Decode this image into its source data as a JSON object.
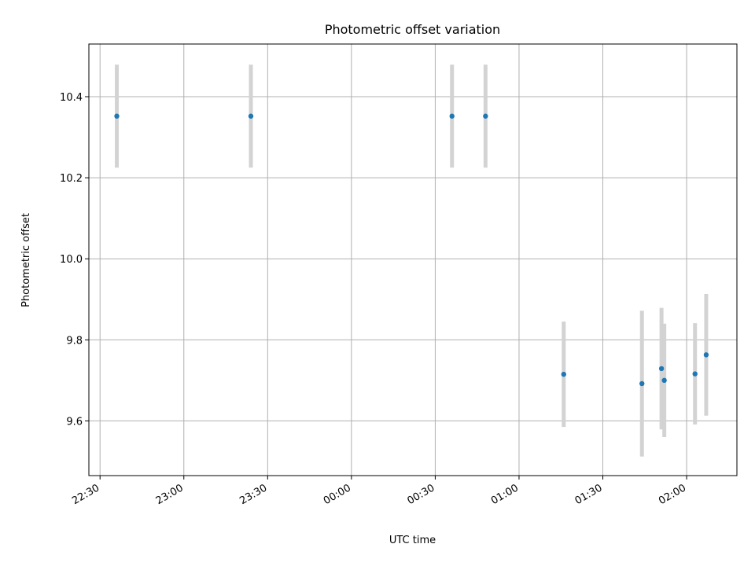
{
  "chart_data": {
    "type": "scatter",
    "title": "Photometric offset variation",
    "xlabel": "UTC time",
    "ylabel": "Photometric offset",
    "x_type": "time",
    "xlim": [
      "22:26",
      "02:18"
    ],
    "ylim": [
      9.465,
      10.53
    ],
    "grid": true,
    "x_ticks": [
      "22:30",
      "23:00",
      "23:30",
      "00:00",
      "00:30",
      "01:00",
      "01:30",
      "02:00"
    ],
    "y_ticks": [
      9.6,
      9.8,
      10.0,
      10.2,
      10.4
    ],
    "y_tick_labels": [
      "9.6",
      "9.8",
      "10.0",
      "10.2",
      "10.4"
    ],
    "series": [
      {
        "x": [
          "22:36",
          "23:24",
          "00:36",
          "00:48",
          "01:16",
          "01:44",
          "01:51",
          "01:52",
          "02:03",
          "02:07"
        ],
        "y": [
          10.352,
          10.352,
          10.352,
          10.352,
          9.715,
          9.692,
          9.729,
          9.7,
          9.716,
          9.763
        ],
        "yerr": [
          0.127,
          0.127,
          0.127,
          0.127,
          0.13,
          0.18,
          0.15,
          0.14,
          0.125,
          0.15
        ]
      }
    ],
    "colors": {
      "point": "#1f77b4",
      "errorbar": "#d3d3d3",
      "grid": "#b0b0b0",
      "axes": "#000000"
    }
  }
}
